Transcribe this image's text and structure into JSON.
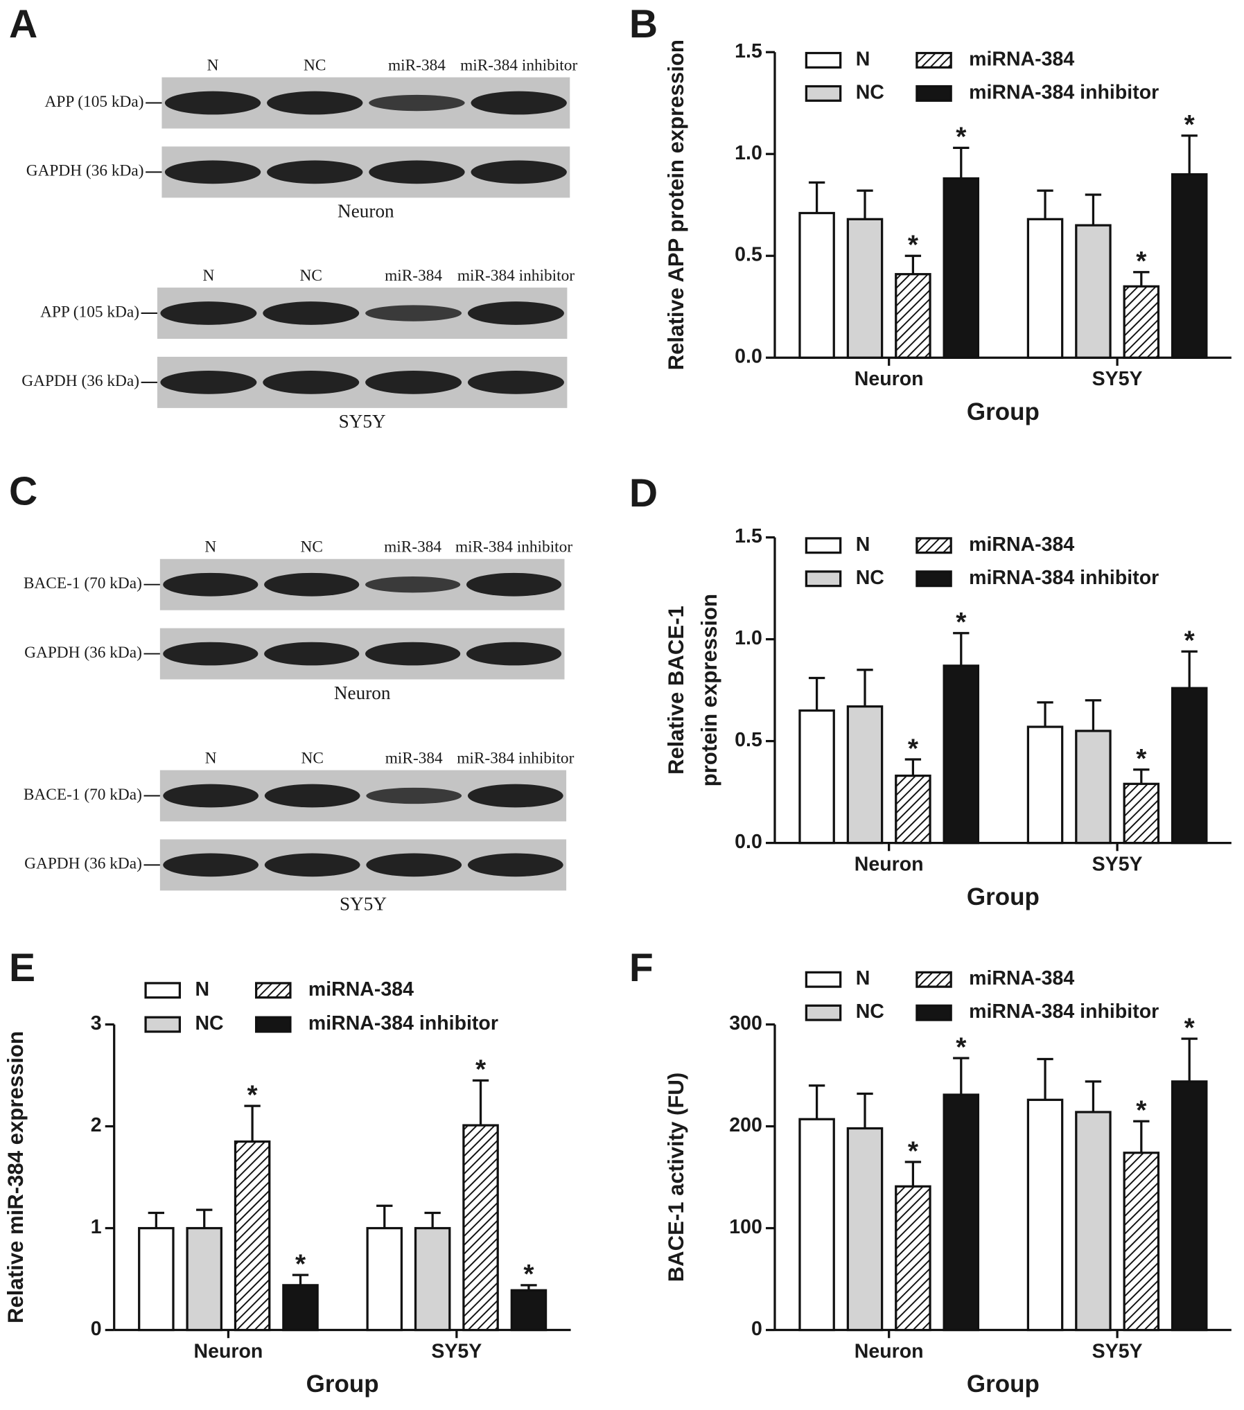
{
  "blots": [
    {
      "panel": "A",
      "blocks": [
        {
          "lanes": [
            "N",
            "NC",
            "miR-384",
            "miR-384 inhibitor"
          ],
          "rows": [
            "APP (105 kDa)",
            "GAPDH (36 kDa)"
          ],
          "caption": "Neuron"
        },
        {
          "lanes": [
            "N",
            "NC",
            "miR-384",
            "miR-384 inhibitor"
          ],
          "rows": [
            "APP (105 kDa)",
            "GAPDH (36 kDa)"
          ],
          "caption": "SY5Y"
        }
      ]
    },
    {
      "panel": "C",
      "blocks": [
        {
          "lanes": [
            "N",
            "NC",
            "miR-384",
            "miR-384 inhibitor"
          ],
          "rows": [
            "BACE-1 (70 kDa)",
            "GAPDH (36 kDa)"
          ],
          "caption": "Neuron"
        },
        {
          "lanes": [
            "N",
            "NC",
            "miR-384",
            "miR-384 inhibitor"
          ],
          "rows": [
            "BACE-1 (70 kDa)",
            "GAPDH (36 kDa)"
          ],
          "caption": "SY5Y"
        }
      ]
    }
  ],
  "chart_data": [
    {
      "type": "bar",
      "panel": "B",
      "y_label": "Relative APP protein expression",
      "x_label": "Group",
      "categories": [
        "Neuron",
        "SY5Y"
      ],
      "ylim": [
        0,
        1.5
      ],
      "yticks": [
        {
          "value": 0,
          "label": "0.0"
        },
        0.5,
        {
          "value": 1,
          "label": "1.0"
        },
        1.5
      ],
      "series": [
        {
          "name": "N",
          "color": "#ffffff",
          "values": [
            0.71,
            0.68
          ],
          "errors": [
            0.15,
            0.14
          ]
        },
        {
          "name": "NC",
          "color": "#d3d3d3",
          "values": [
            0.68,
            0.65
          ],
          "errors": [
            0.14,
            0.15
          ]
        },
        {
          "name": "miRNA-384",
          "color": "#ffffff",
          "pattern": "hatch",
          "values": [
            0.41,
            0.35
          ],
          "errors": [
            0.09,
            0.07
          ],
          "significance": [
            "*",
            "*"
          ]
        },
        {
          "name": "miRNA-384 inhibitor",
          "color": "#141414",
          "values": [
            0.88,
            0.9
          ],
          "errors": [
            0.15,
            0.19
          ],
          "significance": [
            "*",
            "*"
          ]
        }
      ]
    },
    {
      "type": "bar",
      "panel": "D",
      "y_label": [
        "Relative BACE-1",
        "protein expression"
      ],
      "x_label": "Group",
      "categories": [
        "Neuron",
        "SY5Y"
      ],
      "ylim": [
        0,
        1.5
      ],
      "yticks": [
        {
          "value": 0,
          "label": "0.0"
        },
        0.5,
        {
          "value": 1,
          "label": "1.0"
        },
        1.5
      ],
      "series": [
        {
          "name": "N",
          "color": "#ffffff",
          "values": [
            0.65,
            0.57
          ],
          "errors": [
            0.16,
            0.12
          ]
        },
        {
          "name": "NC",
          "color": "#d3d3d3",
          "values": [
            0.67,
            0.55
          ],
          "errors": [
            0.18,
            0.15
          ]
        },
        {
          "name": "miRNA-384",
          "color": "#ffffff",
          "pattern": "hatch",
          "values": [
            0.33,
            0.29
          ],
          "errors": [
            0.08,
            0.07
          ],
          "significance": [
            "*",
            "*"
          ]
        },
        {
          "name": "miRNA-384 inhibitor",
          "color": "#141414",
          "values": [
            0.87,
            0.76
          ],
          "errors": [
            0.16,
            0.18
          ],
          "significance": [
            "*",
            "*"
          ]
        }
      ]
    },
    {
      "type": "bar",
      "panel": "E",
      "y_label": "Relative miR-384 expression",
      "x_label": "Group",
      "categories": [
        "Neuron",
        "SY5Y"
      ],
      "ylim": [
        0,
        3
      ],
      "yticks": [
        0,
        1,
        2,
        3
      ],
      "series": [
        {
          "name": "N",
          "color": "#ffffff",
          "values": [
            1.0,
            1.0
          ],
          "errors": [
            0.15,
            0.22
          ]
        },
        {
          "name": "NC",
          "color": "#d3d3d3",
          "values": [
            1.0,
            1.0
          ],
          "errors": [
            0.18,
            0.15
          ]
        },
        {
          "name": "miRNA-384",
          "color": "#ffffff",
          "pattern": "hatch",
          "values": [
            1.85,
            2.01
          ],
          "errors": [
            0.35,
            0.44
          ],
          "significance": [
            "*",
            "*"
          ]
        },
        {
          "name": "miRNA-384 inhibitor",
          "color": "#141414",
          "values": [
            0.44,
            0.39
          ],
          "errors": [
            0.1,
            0.05
          ],
          "significance": [
            "*",
            "*"
          ]
        }
      ]
    },
    {
      "type": "bar",
      "panel": "F",
      "y_label": "BACE-1 activity (FU)",
      "x_label": "Group",
      "categories": [
        "Neuron",
        "SY5Y"
      ],
      "ylim": [
        0,
        300
      ],
      "yticks": [
        0,
        100,
        200,
        300
      ],
      "series": [
        {
          "name": "N",
          "color": "#ffffff",
          "values": [
            207,
            226
          ],
          "errors": [
            33,
            40
          ]
        },
        {
          "name": "NC",
          "color": "#d3d3d3",
          "values": [
            198,
            214
          ],
          "errors": [
            34,
            30
          ]
        },
        {
          "name": "miRNA-384",
          "color": "#ffffff",
          "pattern": "hatch",
          "values": [
            141,
            174
          ],
          "errors": [
            24,
            31
          ],
          "significance": [
            "*",
            "*"
          ]
        },
        {
          "name": "miRNA-384 inhibitor",
          "color": "#141414",
          "values": [
            231,
            244
          ],
          "errors": [
            36,
            42
          ],
          "significance": [
            "*",
            "*"
          ]
        }
      ]
    }
  ]
}
